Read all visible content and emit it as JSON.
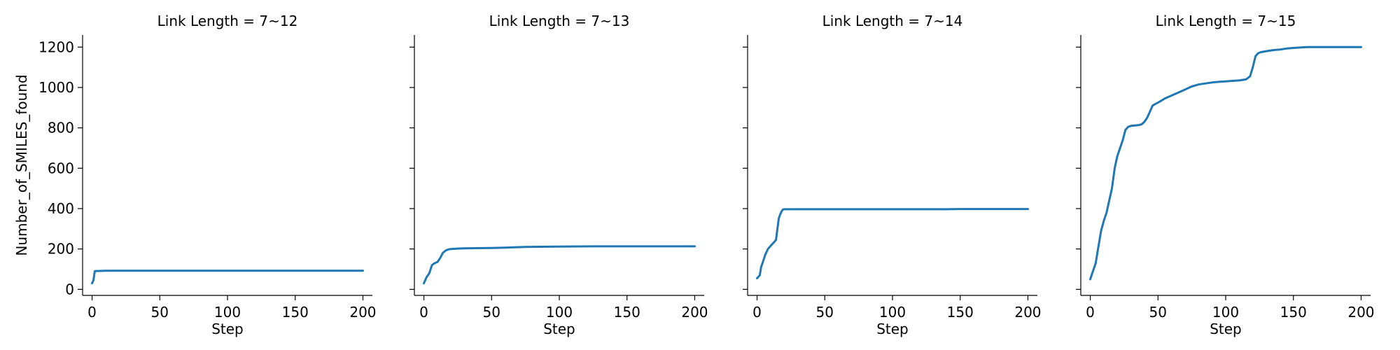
{
  "chart_data": [
    {
      "type": "line",
      "title": "Link Length = 7~12",
      "xlabel": "Step",
      "ylabel": "Number_of_SMILES_found",
      "xlim": [
        -7,
        207
      ],
      "ylim": [
        -30,
        1260
      ],
      "xticks": [
        0,
        50,
        100,
        150,
        200
      ],
      "yticks": [
        0,
        200,
        400,
        600,
        800,
        1000,
        1200
      ],
      "color": "#1f77b4",
      "x": [
        0,
        1,
        2,
        3,
        5,
        10,
        20,
        50,
        100,
        150,
        200
      ],
      "y": [
        30,
        45,
        90,
        91,
        91,
        92,
        92,
        92,
        92,
        92,
        92
      ]
    },
    {
      "type": "line",
      "title": "Link Length = 7~13",
      "xlabel": "Step",
      "ylabel": "",
      "xlim": [
        -7,
        207
      ],
      "ylim": [
        -30,
        1260
      ],
      "xticks": [
        0,
        50,
        100,
        150,
        200
      ],
      "yticks": [
        0,
        200,
        400,
        600,
        800,
        1000,
        1200
      ],
      "color": "#1f77b4",
      "x": [
        0,
        2,
        4,
        6,
        8,
        10,
        12,
        14,
        16,
        18,
        20,
        25,
        30,
        40,
        50,
        60,
        75,
        100,
        125,
        150,
        175,
        200
      ],
      "y": [
        30,
        60,
        80,
        120,
        130,
        135,
        155,
        180,
        192,
        198,
        200,
        202,
        203,
        204,
        205,
        207,
        210,
        212,
        213,
        213,
        213,
        213
      ]
    },
    {
      "type": "line",
      "title": "Link Length = 7~14",
      "xlabel": "Step",
      "ylabel": "",
      "xlim": [
        -7,
        207
      ],
      "ylim": [
        -30,
        1260
      ],
      "xticks": [
        0,
        50,
        100,
        150,
        200
      ],
      "yticks": [
        0,
        200,
        400,
        600,
        800,
        1000,
        1200
      ],
      "color": "#1f77b4",
      "x": [
        0,
        2,
        3,
        4,
        6,
        8,
        10,
        12,
        14,
        15,
        16,
        17,
        18,
        19,
        20,
        25,
        50,
        100,
        140,
        150,
        200
      ],
      "y": [
        55,
        70,
        110,
        130,
        170,
        200,
        215,
        230,
        245,
        300,
        350,
        370,
        385,
        395,
        397,
        397,
        397,
        397,
        397,
        398,
        398
      ]
    },
    {
      "type": "line",
      "title": "Link Length = 7~15",
      "xlabel": "Step",
      "ylabel": "",
      "xlim": [
        -7,
        207
      ],
      "ylim": [
        -30,
        1260
      ],
      "xticks": [
        0,
        50,
        100,
        150,
        200
      ],
      "yticks": [
        0,
        200,
        400,
        600,
        800,
        1000,
        1200
      ],
      "color": "#1f77b4",
      "x": [
        0,
        2,
        4,
        6,
        8,
        10,
        12,
        14,
        16,
        18,
        20,
        22,
        24,
        26,
        28,
        30,
        33,
        36,
        38,
        40,
        42,
        44,
        46,
        48,
        50,
        55,
        60,
        65,
        70,
        75,
        80,
        85,
        90,
        95,
        100,
        105,
        110,
        115,
        118,
        120,
        122,
        124,
        126,
        130,
        135,
        140,
        145,
        150,
        155,
        160,
        170,
        180,
        190,
        200
      ],
      "y": [
        50,
        90,
        130,
        210,
        290,
        340,
        380,
        440,
        500,
        600,
        660,
        700,
        740,
        790,
        805,
        810,
        812,
        814,
        818,
        830,
        850,
        880,
        910,
        918,
        925,
        945,
        960,
        975,
        990,
        1005,
        1015,
        1020,
        1025,
        1028,
        1030,
        1033,
        1035,
        1040,
        1055,
        1100,
        1155,
        1170,
        1175,
        1180,
        1185,
        1188,
        1193,
        1196,
        1198,
        1200,
        1200,
        1200,
        1200,
        1200
      ]
    }
  ]
}
